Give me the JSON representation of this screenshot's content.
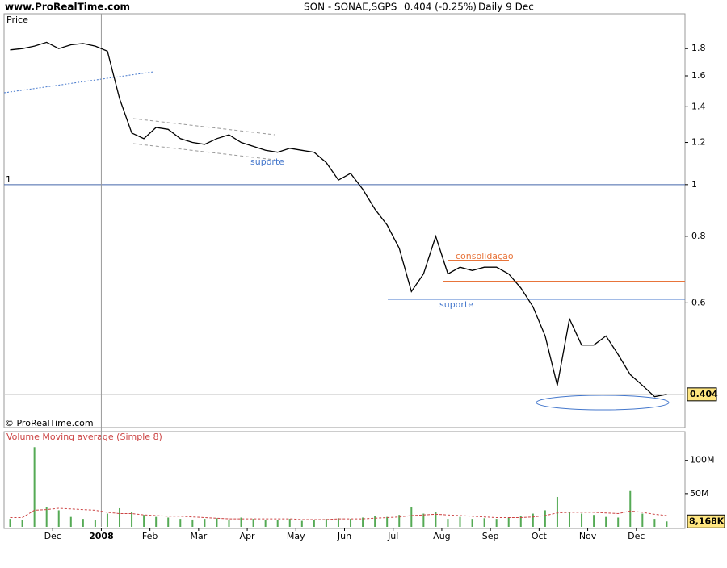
{
  "header": {
    "site": "www.ProRealTime.com",
    "symbol": "SON - SONAE,SGPS",
    "quote": "0.404 (-0.25%)",
    "period": "Daily  9 Dec"
  },
  "chart_data": {
    "type": "line",
    "categories": [
      null,
      null,
      null,
      null,
      "Dec",
      null,
      null,
      null,
      "2008",
      null,
      null,
      null,
      "Feb",
      null,
      null,
      null,
      "Mar",
      null,
      null,
      null,
      "Apr",
      null,
      null,
      null,
      "May",
      null,
      null,
      null,
      "Jun",
      null,
      null,
      null,
      "Jul",
      null,
      null,
      null,
      "Aug",
      null,
      null,
      null,
      "Sep",
      null,
      null,
      null,
      "Oct",
      null,
      null,
      null,
      "Nov",
      null,
      null,
      null,
      "Dec",
      null,
      null,
      null
    ],
    "series": [
      {
        "name": "Price",
        "color": "#000000",
        "values": [
          1.79,
          1.8,
          1.82,
          1.85,
          1.8,
          1.83,
          1.84,
          1.82,
          1.78,
          1.45,
          1.25,
          1.22,
          1.28,
          1.27,
          1.22,
          1.2,
          1.19,
          1.22,
          1.24,
          1.2,
          1.18,
          1.16,
          1.15,
          1.17,
          1.16,
          1.15,
          1.1,
          1.02,
          1.05,
          0.98,
          0.9,
          0.84,
          0.76,
          0.63,
          0.68,
          0.8,
          0.68,
          0.7,
          0.69,
          0.7,
          0.7,
          0.68,
          0.64,
          0.59,
          0.52,
          0.42,
          0.56,
          0.5,
          0.5,
          0.52,
          0.48,
          0.44,
          0.42,
          0.4,
          0.404,
          null
        ]
      }
    ],
    "log": true,
    "ylim": [
      0.35,
      2.1
    ],
    "yticks": [
      0.6,
      0.8,
      1,
      1.2,
      1.4,
      1.6,
      1.8
    ],
    "last_value": 0.404,
    "reference_line": 1,
    "annotations": [
      "suporte",
      "consolidação",
      "suporte"
    ],
    "copyright": "© ProRealTime.com",
    "volume": {
      "type": "bar",
      "color": "#55aa55",
      "values": [
        12000000,
        10000000,
        120000000,
        30000000,
        25000000,
        15000000,
        12000000,
        10000000,
        20000000,
        28000000,
        22000000,
        18000000,
        15000000,
        14000000,
        12000000,
        11000000,
        12000000,
        13000000,
        10000000,
        14000000,
        12000000,
        11000000,
        10000000,
        12000000,
        9000000,
        10000000,
        12000000,
        13000000,
        12000000,
        14000000,
        16000000,
        15000000,
        18000000,
        30000000,
        20000000,
        22000000,
        12000000,
        15000000,
        12000000,
        13000000,
        12000000,
        14000000,
        16000000,
        20000000,
        25000000,
        45000000,
        22000000,
        20000000,
        18000000,
        15000000,
        14000000,
        55000000,
        20000000,
        12000000,
        8168000,
        null
      ],
      "ylim": [
        0,
        141000000
      ],
      "yticks": [
        {
          "value": 50000000,
          "label": "50M"
        },
        {
          "value": 100000000,
          "label": "100M"
        }
      ],
      "last_value": {
        "value": 8168000,
        "label": "8,168K"
      },
      "average": {
        "name": "Volume Moving average (Simple 8)",
        "color": "#cc4444",
        "values": [
          14000000,
          14000000,
          25000000,
          26000000,
          28000000,
          27000000,
          26000000,
          25000000,
          22000000,
          20000000,
          20000000,
          18000000,
          17000000,
          16000000,
          16000000,
          15000000,
          14000000,
          13000000,
          12000000,
          12000000,
          12000000,
          12000000,
          12000000,
          12000000,
          11000000,
          11000000,
          11000000,
          12000000,
          12000000,
          12000000,
          13000000,
          14000000,
          15000000,
          17000000,
          18000000,
          19000000,
          18000000,
          17000000,
          16000000,
          15000000,
          14000000,
          14000000,
          14000000,
          15000000,
          17000000,
          21000000,
          22000000,
          22000000,
          22000000,
          21000000,
          20000000,
          24000000,
          22000000,
          19000000,
          17000000,
          null
        ]
      }
    }
  }
}
